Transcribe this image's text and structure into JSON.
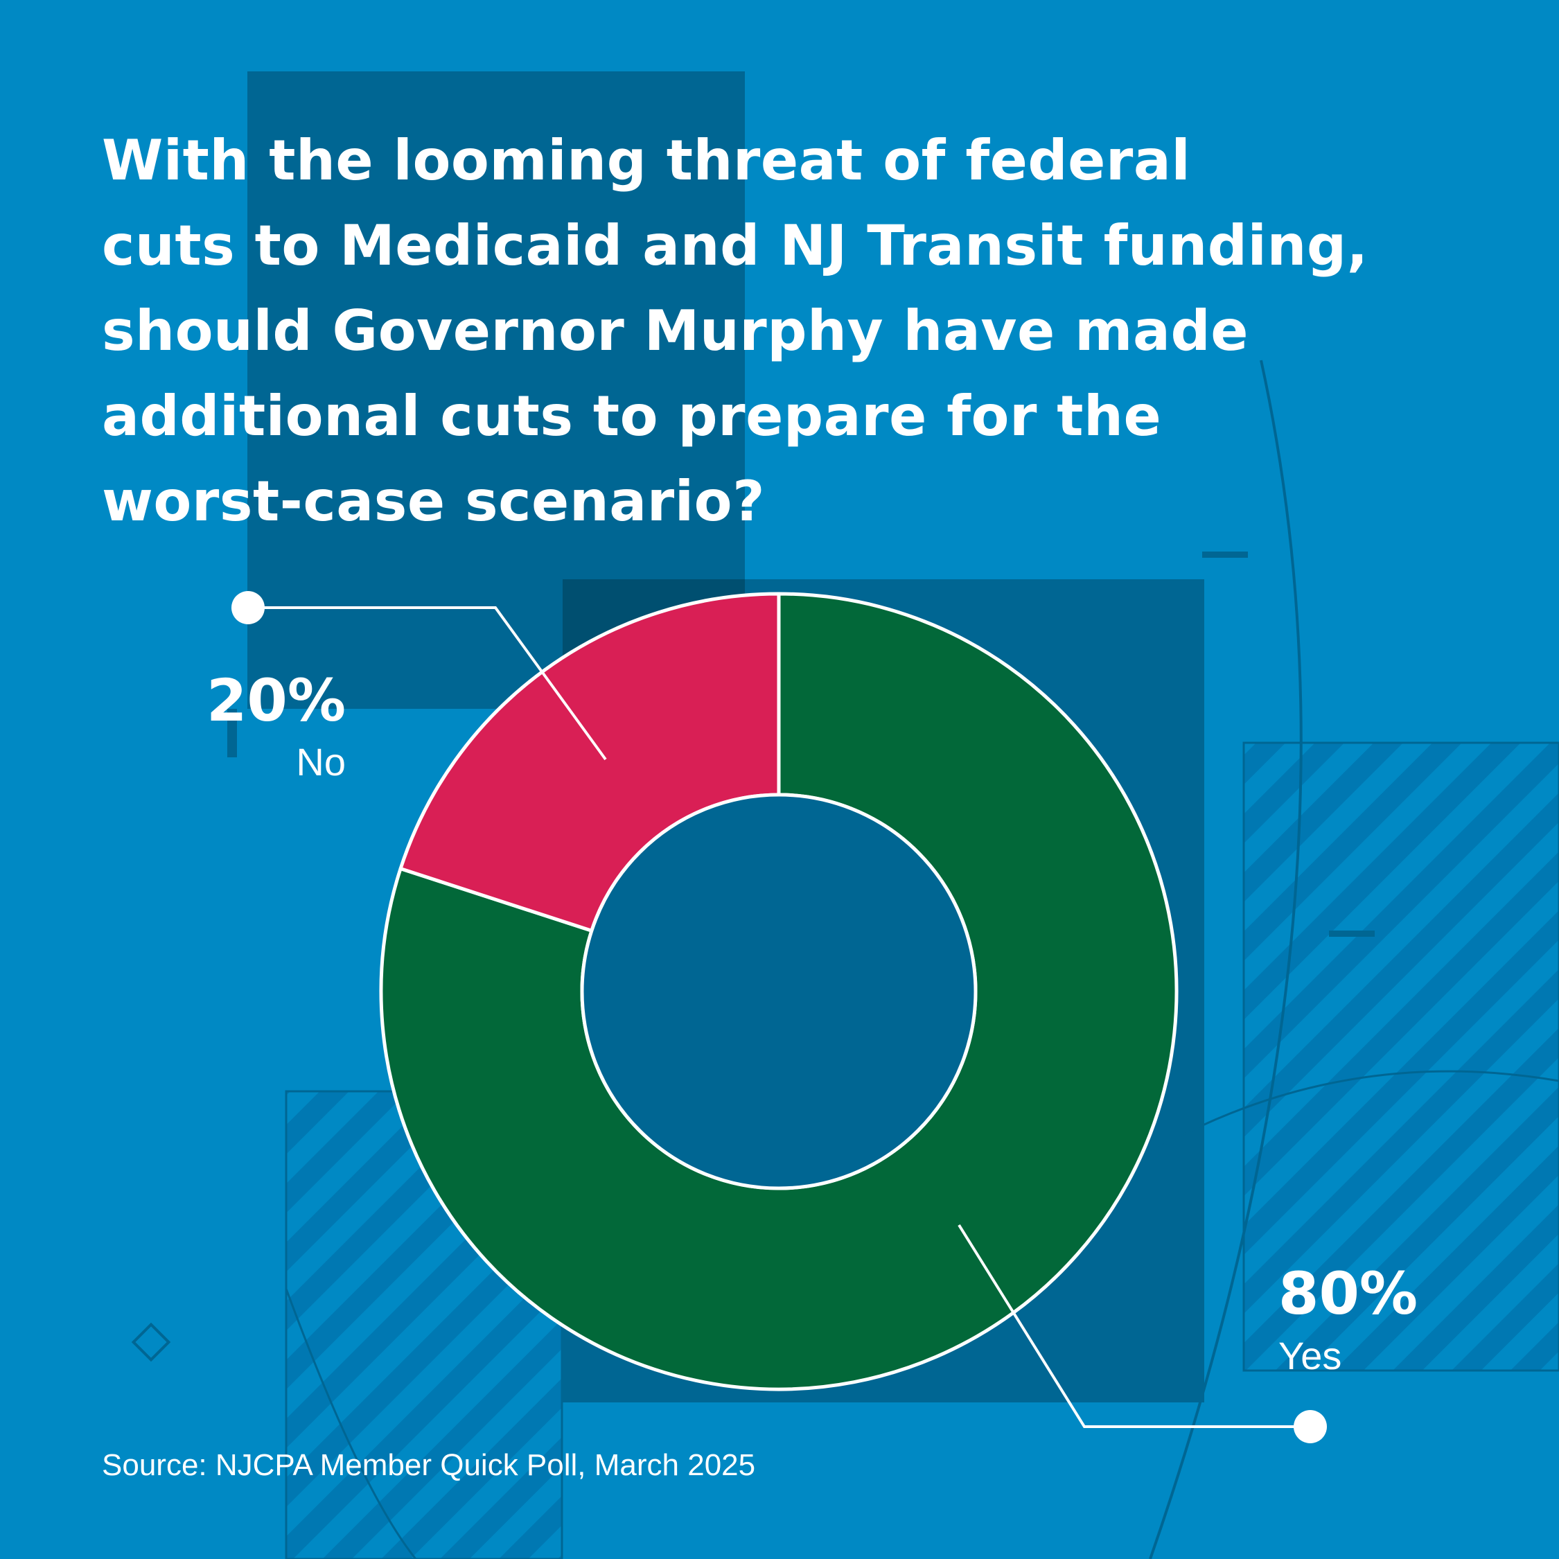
{
  "title_lines": [
    "With the looming threat of federal",
    "cuts to Medicaid and NJ Transit funding,",
    "should Governor Murphy have made",
    "additional cuts to prepare for the",
    "worst-case scenario?"
  ],
  "source": "Source: NJCPA Member Quick Poll, March 2025",
  "colors": {
    "background": "#0089c4",
    "yes": "#026839",
    "no": "#d91f55",
    "hole": "#006693",
    "outline": "#ffffff"
  },
  "chart_data": {
    "type": "pie",
    "donut": true,
    "slices": [
      {
        "label": "Yes",
        "value": 80,
        "display": "80%",
        "color": "#026839"
      },
      {
        "label": "No",
        "value": 20,
        "display": "20%",
        "color": "#d91f55"
      }
    ]
  }
}
